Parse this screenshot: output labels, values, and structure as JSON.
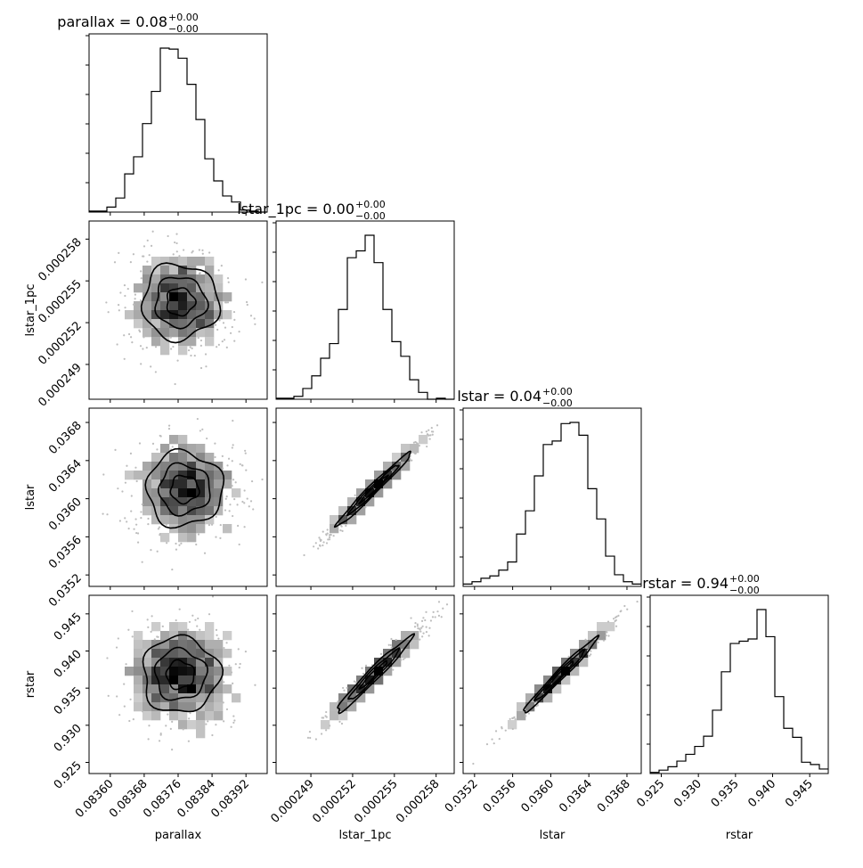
{
  "chart_data": {
    "type": "corner",
    "parameters": [
      "parallax",
      "lstar_1pc",
      "lstar",
      "rstar"
    ],
    "axis_labels": [
      "parallax",
      "lstar_1pc",
      "lstar",
      "rstar"
    ],
    "titles": [
      {
        "name": "parallax",
        "median": "0.08",
        "plus": "+0.00",
        "minus": "−0.00"
      },
      {
        "name": "lstar_1pc",
        "median": "0.00",
        "plus": "+0.00",
        "minus": "−0.00"
      },
      {
        "name": "lstar",
        "median": "0.04",
        "plus": "+0.00",
        "minus": "−0.00"
      },
      {
        "name": "rstar",
        "median": "0.94",
        "plus": "+0.00",
        "minus": "−0.00"
      }
    ],
    "ranges": [
      [
        0.08355,
        0.08397
      ],
      [
        0.0002465,
        0.0002593
      ],
      [
        0.03508,
        0.03695
      ],
      [
        0.9235,
        0.9475
      ]
    ],
    "ticks": [
      {
        "values": [
          0.0836,
          0.08368,
          0.08376,
          0.08384,
          0.08392
        ],
        "labels": [
          "0.08360",
          "0.08368",
          "0.08376",
          "0.08384",
          "0.08392"
        ]
      },
      {
        "values": [
          0.000249,
          0.000252,
          0.000255,
          0.000258
        ],
        "labels": [
          "0.000249",
          "0.000252",
          "0.000255",
          "0.000258"
        ]
      },
      {
        "values": [
          0.0352,
          0.0356,
          0.036,
          0.0364,
          0.0368
        ],
        "labels": [
          "0.0352",
          "0.0356",
          "0.0360",
          "0.0364",
          "0.0368"
        ]
      },
      {
        "values": [
          0.925,
          0.93,
          0.935,
          0.94,
          0.945
        ],
        "labels": [
          "0.925",
          "0.930",
          "0.935",
          "0.940",
          "0.945"
        ]
      }
    ],
    "histograms": [
      [
        1,
        1,
        5,
        14,
        38,
        55,
        88,
        120,
        163,
        162,
        153,
        127,
        92,
        53,
        31,
        16,
        10,
        2,
        1,
        0
      ],
      [
        1,
        1,
        3,
        11,
        24,
        42,
        57,
        92,
        145,
        152,
        168,
        140,
        92,
        59,
        44,
        20,
        7,
        0,
        1,
        0
      ],
      [
        2,
        4,
        7,
        9,
        14,
        21,
        45,
        65,
        95,
        122,
        125,
        140,
        141,
        130,
        84,
        58,
        26,
        10,
        4,
        2
      ],
      [
        1,
        3,
        6,
        11,
        17,
        24,
        33,
        56,
        90,
        115,
        117,
        119,
        145,
        121,
        68,
        40,
        32,
        10,
        8,
        4
      ]
    ],
    "joint": [
      {
        "row": 1,
        "col": 0,
        "mean": [
          0.083765,
          0.0002535
        ],
        "sd": [
          6e-05,
          1.8e-06
        ],
        "corr": 0.0
      },
      {
        "row": 2,
        "col": 0,
        "mean": [
          0.083775,
          0.0361
        ],
        "sd": [
          6e-05,
          0.00026
        ],
        "corr": 0.0
      },
      {
        "row": 2,
        "col": 1,
        "mean": [
          0.0002535,
          0.0361
        ],
        "sd": [
          1.8e-06,
          0.00026
        ],
        "corr": 0.985
      },
      {
        "row": 3,
        "col": 0,
        "mean": [
          0.083765,
          0.9368
        ],
        "sd": [
          6e-05,
          0.0034
        ],
        "corr": 0.0
      },
      {
        "row": 3,
        "col": 1,
        "mean": [
          0.0002535,
          0.9368
        ],
        "sd": [
          1.8e-06,
          0.0034
        ],
        "corr": 0.975
      },
      {
        "row": 3,
        "col": 2,
        "mean": [
          0.0361,
          0.9368
        ],
        "sd": [
          0.00026,
          0.0034
        ],
        "corr": 0.985
      }
    ]
  }
}
